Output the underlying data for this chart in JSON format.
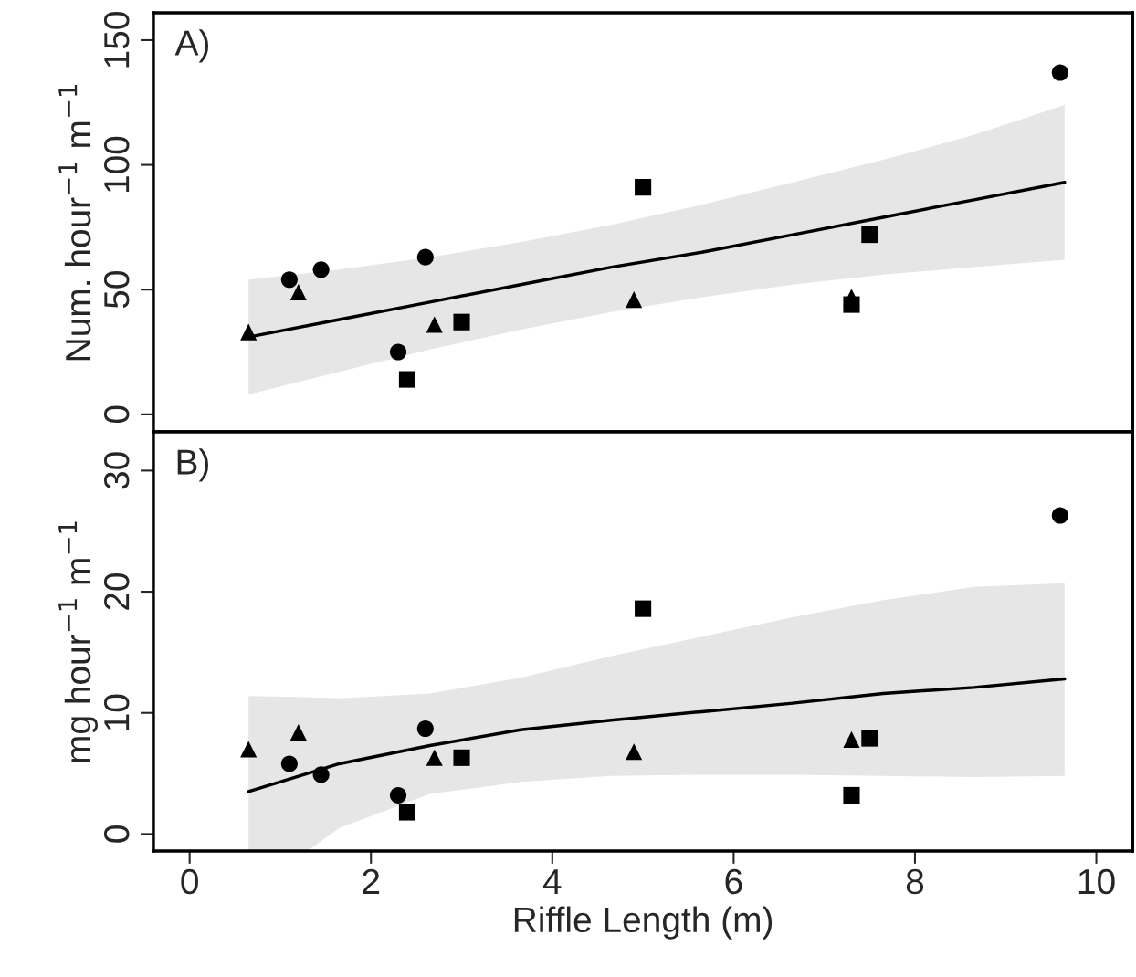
{
  "chart_data": [
    {
      "type": "scatter",
      "ylabel": "Num. hour$^{−1}$ m$^{−1}$",
      "annotations": [
        "A)"
      ],
      "xlim": [
        -0.4,
        10.4
      ],
      "ylim": [
        -7,
        161
      ],
      "yticks": [
        0,
        50,
        100,
        150
      ],
      "tick_labels": "y",
      "grid": false,
      "legend": false,
      "series": [
        {
          "color": "#000000",
          "marker": "circle",
          "x": [
            1.1,
            1.45,
            2.3,
            2.6,
            9.6
          ],
          "values": [
            54,
            58,
            25,
            63,
            137
          ]
        },
        {
          "color": "#000000",
          "marker": "square",
          "x": [
            2.4,
            3.0,
            5.0,
            7.3,
            7.5
          ],
          "values": [
            14,
            37,
            91,
            44,
            72
          ]
        },
        {
          "color": "#000000",
          "marker": "triangle",
          "x": [
            0.65,
            1.2,
            2.7,
            4.9,
            7.3
          ],
          "values": [
            33,
            49,
            36,
            46,
            47
          ]
        },
        {
          "type": "line",
          "color": "#000000",
          "line_style": "solid",
          "x": [
            0.65,
            1.65,
            2.65,
            3.65,
            4.65,
            5.65,
            6.65,
            7.65,
            8.65,
            9.65
          ],
          "values": [
            31,
            38,
            45,
            52,
            59,
            65,
            72,
            79,
            86,
            93
          ],
          "lower": [
            8,
            17,
            26,
            34,
            41,
            47,
            52,
            56,
            59,
            62
          ],
          "upper": [
            54,
            58,
            63,
            69,
            76,
            84,
            93,
            102,
            112,
            124
          ]
        }
      ]
    },
    {
      "type": "scatter",
      "xlabel": "Riffle Length (m)",
      "ylabel": "mg hour$^{−1}$ m$^{−1}$",
      "annotations": [
        "B)"
      ],
      "xlim": [
        -0.4,
        10.4
      ],
      "ylim": [
        -1.4,
        33.2
      ],
      "xticks": [
        0,
        2,
        4,
        6,
        8,
        10
      ],
      "yticks": [
        0,
        10,
        20,
        30
      ],
      "grid": false,
      "legend": false,
      "series": [
        {
          "color": "#000000",
          "marker": "circle",
          "x": [
            1.1,
            1.45,
            2.3,
            2.6,
            9.6
          ],
          "values": [
            5.8,
            4.9,
            3.2,
            8.7,
            26.3
          ]
        },
        {
          "color": "#000000",
          "marker": "triangle",
          "x": [
            0.65,
            1.2,
            2.7,
            4.9,
            7.3
          ],
          "values": [
            7.0,
            8.4,
            6.3,
            6.8,
            7.8
          ]
        },
        {
          "color": "#000000",
          "marker": "square",
          "x": [
            2.4,
            3.0,
            5.0,
            7.3,
            7.5
          ],
          "values": [
            1.8,
            6.3,
            18.6,
            3.2,
            7.9
          ]
        },
        {
          "type": "line",
          "color": "#000000",
          "line_style": "solid",
          "x": [
            0.65,
            1.3,
            1.65,
            2.65,
            3.65,
            4.65,
            5.65,
            6.65,
            7.65,
            8.65,
            9.65
          ],
          "values": [
            3.5,
            5.0,
            5.8,
            7.3,
            8.6,
            9.4,
            10.1,
            10.8,
            11.6,
            12.1,
            12.8
          ],
          "lower": [
            -1.4,
            -1.4,
            0.5,
            3.3,
            4.3,
            4.8,
            4.9,
            4.9,
            4.8,
            4.7,
            4.8
          ],
          "upper": [
            11.4,
            11.3,
            11.2,
            11.6,
            12.9,
            14.7,
            16.3,
            17.9,
            19.3,
            20.4,
            20.7
          ]
        }
      ]
    }
  ]
}
